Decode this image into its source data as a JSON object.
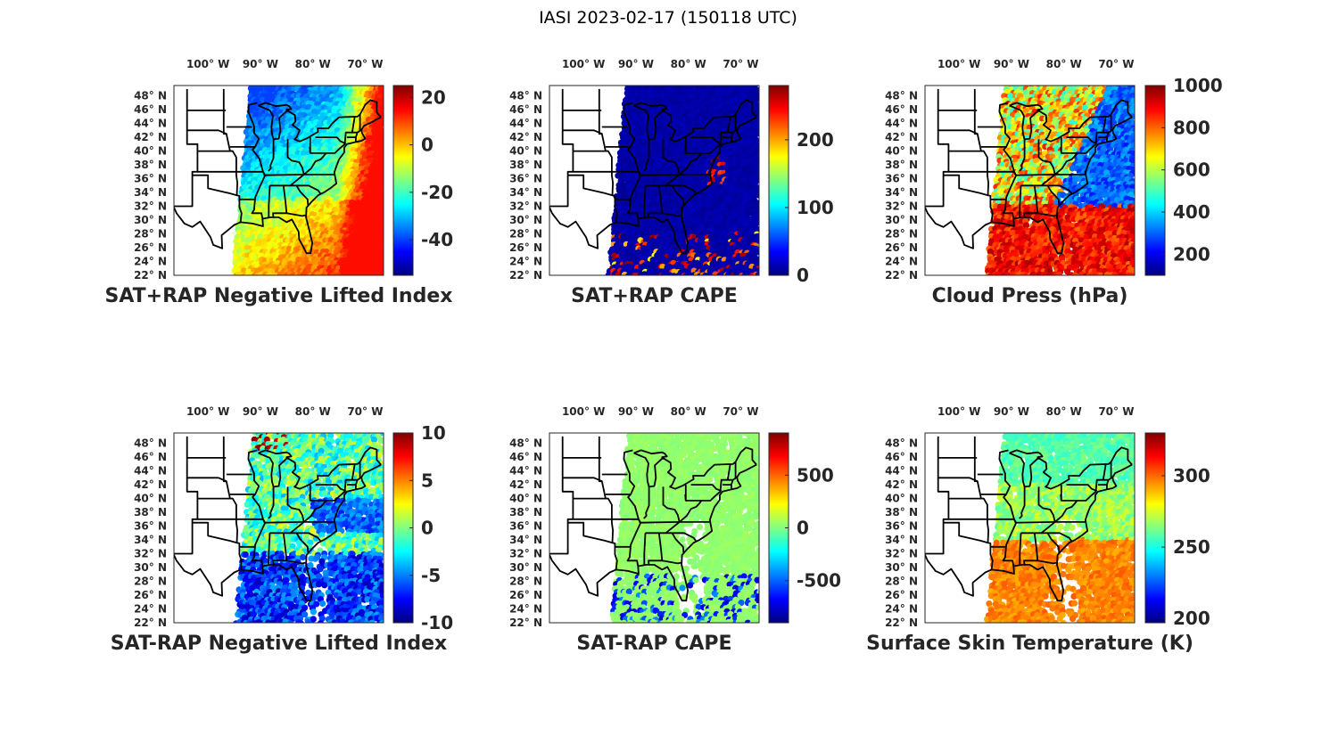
{
  "figure_title": "IASI 2023-02-17 (150118 UTC)",
  "lon_ticks": [
    "100° W",
    "90° W",
    "80° W",
    "70° W"
  ],
  "lat_ticks": [
    "48° N",
    "46° N",
    "44° N",
    "42° N",
    "40° N",
    "38° N",
    "36° N",
    "34° N",
    "32° N",
    "30° N",
    "28° N",
    "26° N",
    "24° N",
    "22° N"
  ],
  "colormap": "jet",
  "chart_data": [
    {
      "type": "heatmap",
      "title": "SAT+RAP Negative Lifted Index",
      "clim": [
        -55,
        25
      ],
      "colorbar_ticks": [
        "20",
        "0",
        "-20",
        "-40"
      ],
      "colorbar_tick_values": [
        20,
        0,
        -20,
        -40
      ],
      "field": "satrap_nli",
      "points": [
        [
          -85,
          45
        ],
        [
          -80,
          40
        ],
        [
          -85,
          30
        ],
        [
          -75,
          32
        ],
        [
          -72,
          44
        ]
      ]
    },
    {
      "type": "heatmap",
      "title": "SAT+RAP CAPE",
      "clim": [
        0,
        280
      ],
      "colorbar_ticks": [
        "200",
        "100",
        "0"
      ],
      "colorbar_tick_values": [
        200,
        100,
        0
      ],
      "field": "satrap_cape",
      "points": [
        [
          -80,
          40
        ],
        [
          -75,
          30
        ],
        [
          -85,
          25
        ],
        [
          -72,
          38
        ]
      ]
    },
    {
      "type": "heatmap",
      "title": "Cloud Press (hPa)",
      "clim": [
        100,
        1000
      ],
      "colorbar_ticks": [
        "1000",
        "800",
        "600",
        "400",
        "200"
      ],
      "colorbar_tick_values": [
        1000,
        800,
        600,
        400,
        200
      ],
      "field": "cloud_press",
      "points": [
        [
          -84,
          44
        ],
        [
          -80,
          38
        ],
        [
          -75,
          32
        ],
        [
          -72,
          44
        ]
      ]
    },
    {
      "type": "heatmap",
      "title": "SAT-RAP Negative Lifted Index",
      "clim": [
        -10,
        10
      ],
      "colorbar_ticks": [
        "10",
        "5",
        "0",
        "-5",
        "-10"
      ],
      "colorbar_tick_values": [
        10,
        5,
        0,
        -5,
        -10
      ],
      "field": "satmrap_nli",
      "points": [
        [
          -85,
          44
        ],
        [
          -80,
          38
        ],
        [
          -78,
          27
        ],
        [
          -72,
          36
        ]
      ]
    },
    {
      "type": "heatmap",
      "title": "SAT-RAP CAPE",
      "clim": [
        -900,
        900
      ],
      "colorbar_ticks": [
        "500",
        "0",
        "-500"
      ],
      "colorbar_tick_values": [
        500,
        0,
        -500
      ],
      "field": "satmrap_cape",
      "points": [
        [
          -84,
          44
        ],
        [
          -80,
          38
        ],
        [
          -78,
          27
        ]
      ]
    },
    {
      "type": "heatmap",
      "title": "Surface Skin Temperature (K)",
      "clim": [
        197,
        330
      ],
      "colorbar_ticks": [
        "300",
        "250",
        "200"
      ],
      "colorbar_tick_values": [
        300,
        250,
        200
      ],
      "field": "skin_temp",
      "points": [
        [
          -84,
          44
        ],
        [
          -80,
          38
        ],
        [
          -78,
          28
        ],
        [
          -74,
          33
        ]
      ]
    }
  ]
}
